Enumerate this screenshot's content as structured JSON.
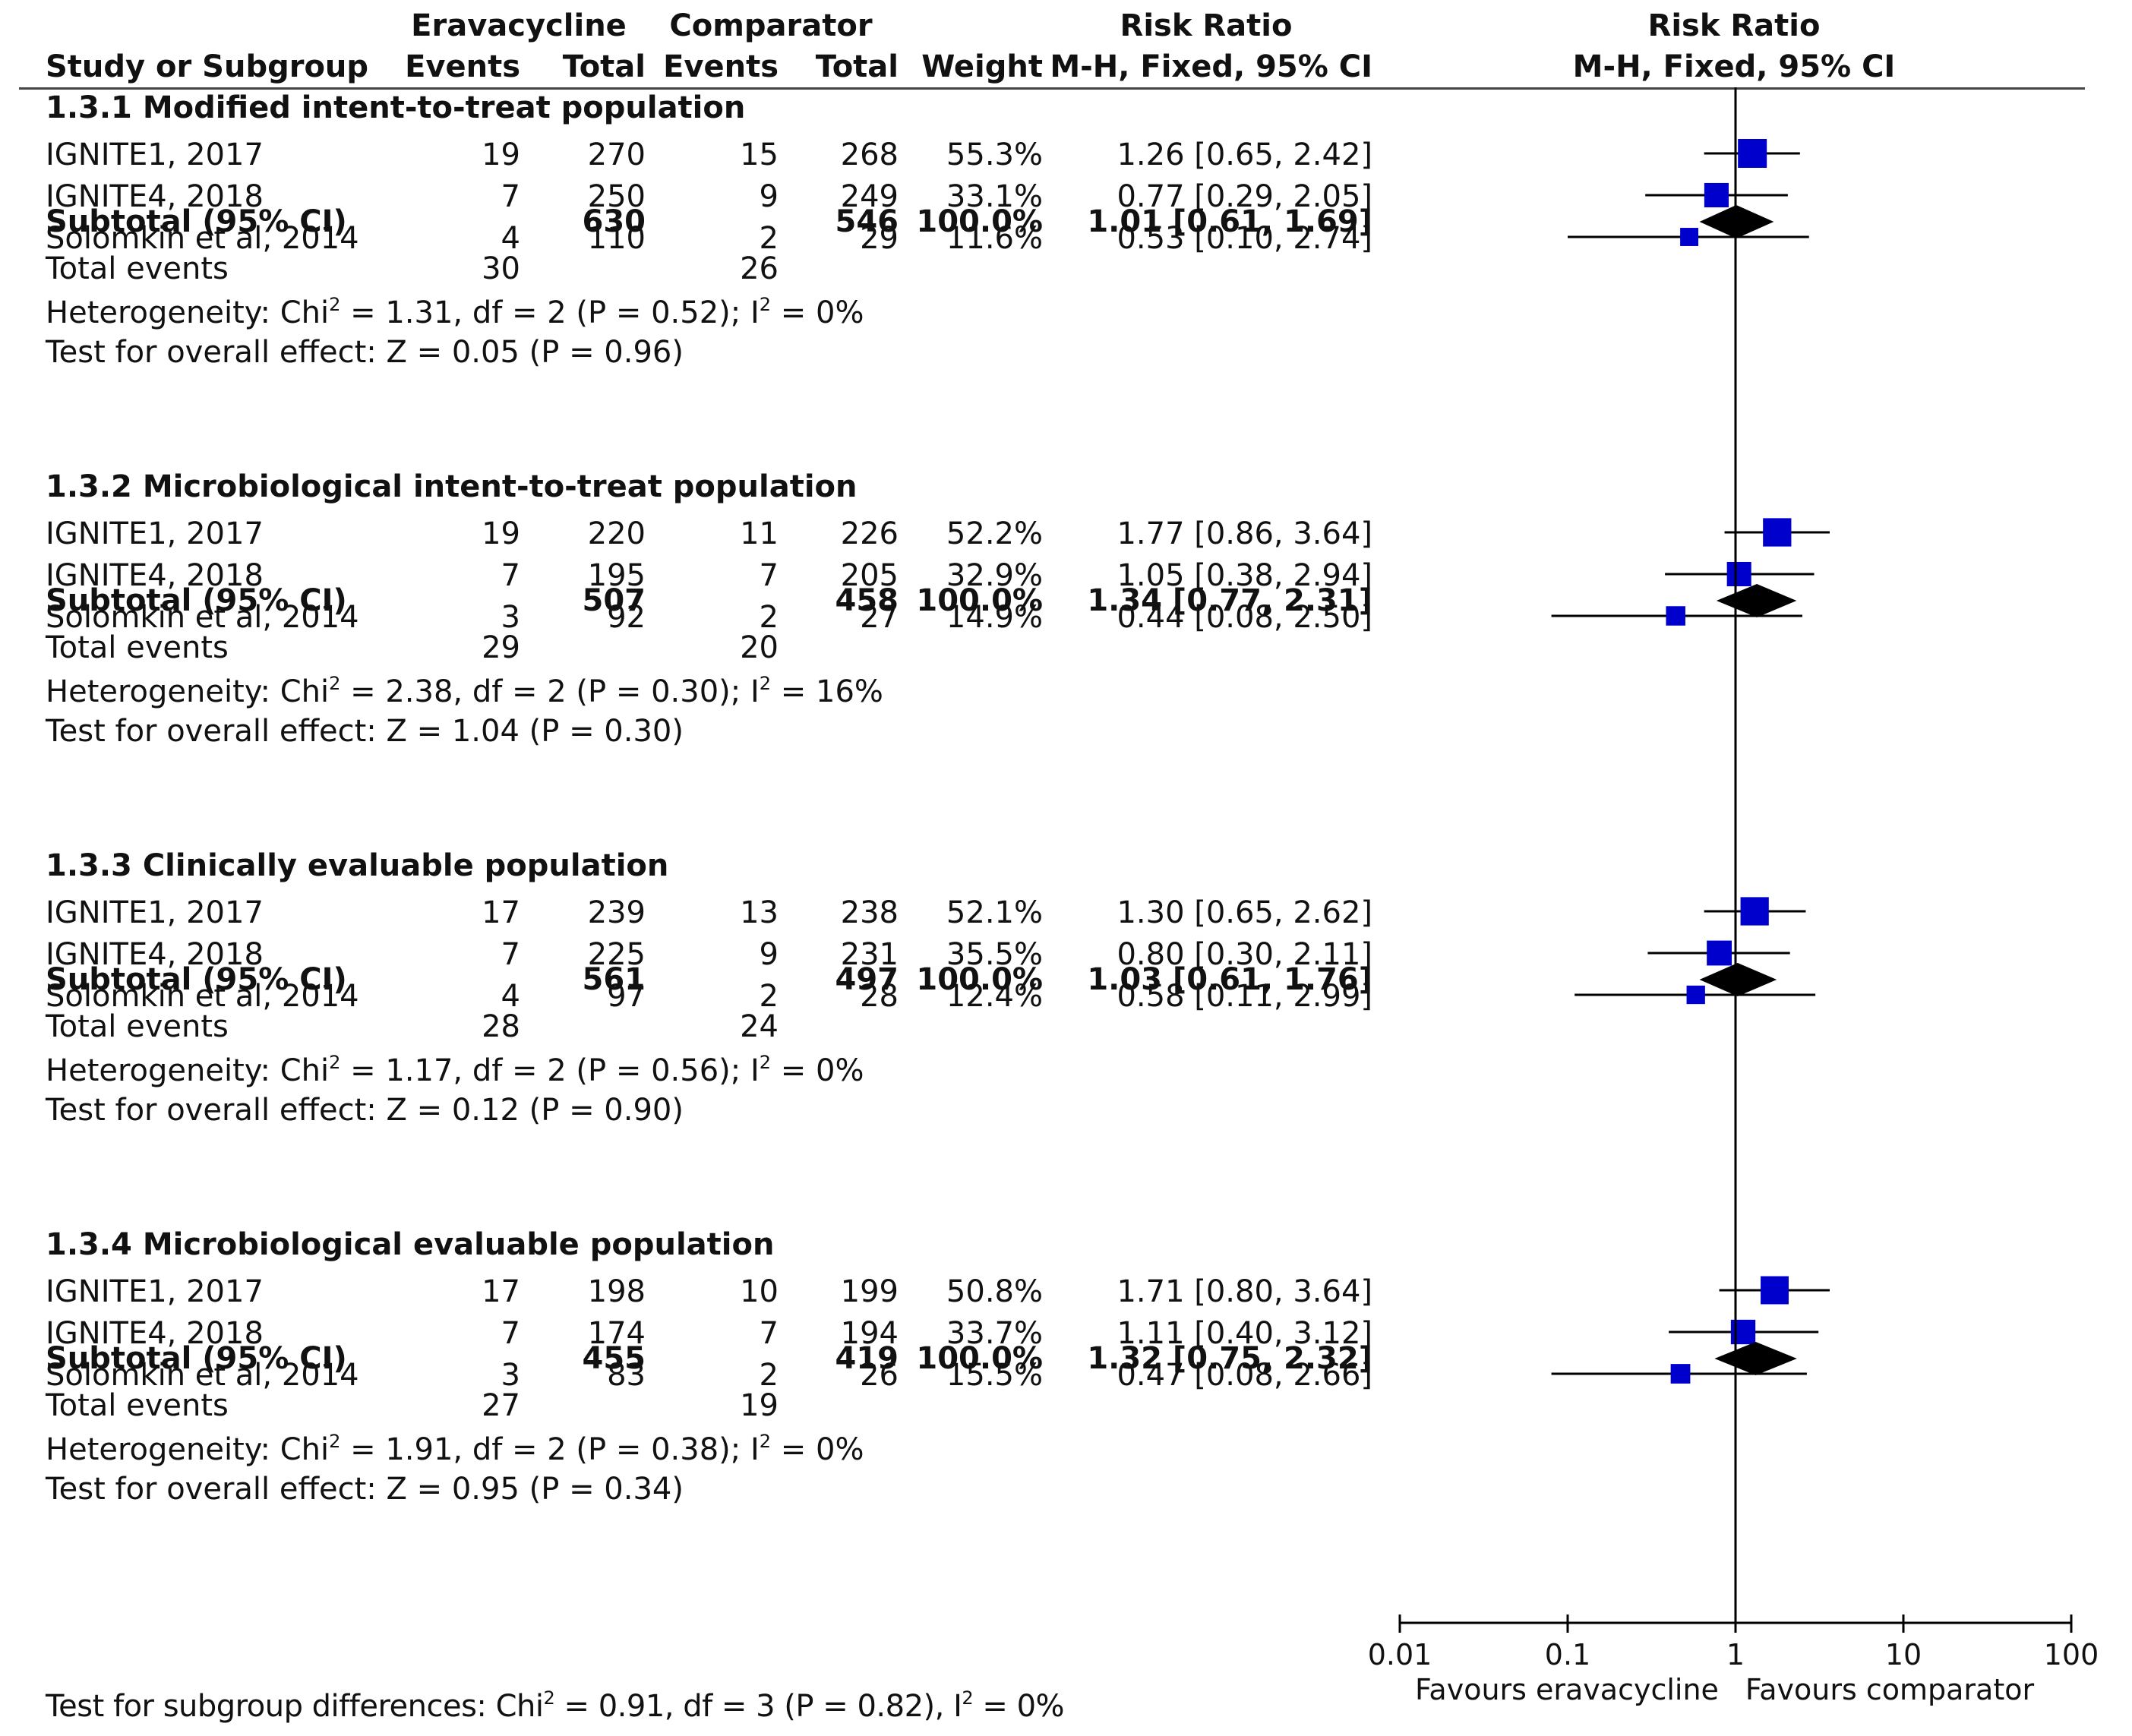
{
  "header": {
    "group1": "Eravacycline",
    "group2": "Comparator",
    "rr_col": "Risk Ratio",
    "plot_col": "Risk Ratio",
    "study_col": "Study or Subgroup",
    "events1": "Events",
    "total1": "Total",
    "events2": "Events",
    "total2": "Total",
    "weight": "Weight",
    "method": "M-H, Fixed, 95% CI",
    "method_plot": "M-H, Fixed, 95% CI"
  },
  "subgroups": [
    {
      "title": "1.3.1 Modified intent-to-treat population",
      "studies": [
        {
          "name": "IGNITE1, 2017",
          "e1": "19",
          "t1": "270",
          "e2": "15",
          "t2": "268",
          "weight": "55.3%",
          "ci": "1.26 [0.65, 2.42]",
          "rr": 1.26,
          "lo": 0.65,
          "hi": 2.42,
          "w": 55.3
        },
        {
          "name": "IGNITE4, 2018",
          "e1": "7",
          "t1": "250",
          "e2": "9",
          "t2": "249",
          "weight": "33.1%",
          "ci": "0.77 [0.29, 2.05]",
          "rr": 0.77,
          "lo": 0.29,
          "hi": 2.05,
          "w": 33.1
        },
        {
          "name": "Solomkin et al, 2014",
          "e1": "4",
          "t1": "110",
          "e2": "2",
          "t2": "29",
          "weight": "11.6%",
          "ci": "0.53 [0.10, 2.74]",
          "rr": 0.53,
          "lo": 0.1,
          "hi": 2.74,
          "w": 11.6
        }
      ],
      "subtotal": {
        "label": "Subtotal (95% CI)",
        "t1": "630",
        "t2": "546",
        "weight": "100.0%",
        "ci": "1.01 [0.61, 1.69]",
        "rr": 1.01,
        "lo": 0.61,
        "hi": 1.69
      },
      "events": {
        "label": "Total events",
        "e1": "30",
        "e2": "26"
      },
      "heterogeneity": {
        "pre": "Heterogeneity: Chi",
        "sup1": "2",
        "mid": " = 1.31, df = 2 (P = 0.52); I",
        "sup2": "2",
        "post": " = 0%"
      },
      "overall": "Test for overall effect: Z = 0.05 (P = 0.96)"
    },
    {
      "title": "1.3.2 Microbiological intent-to-treat population",
      "studies": [
        {
          "name": "IGNITE1, 2017",
          "e1": "19",
          "t1": "220",
          "e2": "11",
          "t2": "226",
          "weight": "52.2%",
          "ci": "1.77 [0.86, 3.64]",
          "rr": 1.77,
          "lo": 0.86,
          "hi": 3.64,
          "w": 52.2
        },
        {
          "name": "IGNITE4, 2018",
          "e1": "7",
          "t1": "195",
          "e2": "7",
          "t2": "205",
          "weight": "32.9%",
          "ci": "1.05 [0.38, 2.94]",
          "rr": 1.05,
          "lo": 0.38,
          "hi": 2.94,
          "w": 32.9
        },
        {
          "name": "Solomkin et al, 2014",
          "e1": "3",
          "t1": "92",
          "e2": "2",
          "t2": "27",
          "weight": "14.9%",
          "ci": "0.44 [0.08, 2.50]",
          "rr": 0.44,
          "lo": 0.08,
          "hi": 2.5,
          "w": 14.9
        }
      ],
      "subtotal": {
        "label": "Subtotal (95% CI)",
        "t1": "507",
        "t2": "458",
        "weight": "100.0%",
        "ci": "1.34 [0.77, 2.31]",
        "rr": 1.34,
        "lo": 0.77,
        "hi": 2.31
      },
      "events": {
        "label": "Total events",
        "e1": "29",
        "e2": "20"
      },
      "heterogeneity": {
        "pre": "Heterogeneity: Chi",
        "sup1": "2",
        "mid": " = 2.38, df = 2 (P = 0.30); I",
        "sup2": "2",
        "post": " = 16%"
      },
      "overall": "Test for overall effect: Z = 1.04 (P = 0.30)"
    },
    {
      "title": "1.3.3 Clinically evaluable population",
      "studies": [
        {
          "name": "IGNITE1, 2017",
          "e1": "17",
          "t1": "239",
          "e2": "13",
          "t2": "238",
          "weight": "52.1%",
          "ci": "1.30 [0.65, 2.62]",
          "rr": 1.3,
          "lo": 0.65,
          "hi": 2.62,
          "w": 52.1
        },
        {
          "name": "IGNITE4, 2018",
          "e1": "7",
          "t1": "225",
          "e2": "9",
          "t2": "231",
          "weight": "35.5%",
          "ci": "0.80 [0.30, 2.11]",
          "rr": 0.8,
          "lo": 0.3,
          "hi": 2.11,
          "w": 35.5
        },
        {
          "name": "Solomkin et al, 2014",
          "e1": "4",
          "t1": "97",
          "e2": "2",
          "t2": "28",
          "weight": "12.4%",
          "ci": "0.58 [0.11, 2.99]",
          "rr": 0.58,
          "lo": 0.11,
          "hi": 2.99,
          "w": 12.4
        }
      ],
      "subtotal": {
        "label": "Subtotal (95% CI)",
        "t1": "561",
        "t2": "497",
        "weight": "100.0%",
        "ci": "1.03 [0.61, 1.76]",
        "rr": 1.03,
        "lo": 0.61,
        "hi": 1.76
      },
      "events": {
        "label": "Total events",
        "e1": "28",
        "e2": "24"
      },
      "heterogeneity": {
        "pre": "Heterogeneity: Chi",
        "sup1": "2",
        "mid": " = 1.17, df = 2 (P = 0.56); I",
        "sup2": "2",
        "post": " = 0%"
      },
      "overall": "Test for overall effect: Z = 0.12 (P = 0.90)"
    },
    {
      "title": "1.3.4 Microbiological evaluable population",
      "studies": [
        {
          "name": "IGNITE1, 2017",
          "e1": "17",
          "t1": "198",
          "e2": "10",
          "t2": "199",
          "weight": "50.8%",
          "ci": "1.71 [0.80, 3.64]",
          "rr": 1.71,
          "lo": 0.8,
          "hi": 3.64,
          "w": 50.8
        },
        {
          "name": "IGNITE4, 2018",
          "e1": "7",
          "t1": "174",
          "e2": "7",
          "t2": "194",
          "weight": "33.7%",
          "ci": "1.11 [0.40, 3.12]",
          "rr": 1.11,
          "lo": 0.4,
          "hi": 3.12,
          "w": 33.7
        },
        {
          "name": "Solomkin et al, 2014",
          "e1": "3",
          "t1": "83",
          "e2": "2",
          "t2": "26",
          "weight": "15.5%",
          "ci": "0.47 [0.08, 2.66]",
          "rr": 0.47,
          "lo": 0.08,
          "hi": 2.66,
          "w": 15.5
        }
      ],
      "subtotal": {
        "label": "Subtotal (95% CI)",
        "t1": "455",
        "t2": "419",
        "weight": "100.0%",
        "ci": "1.32 [0.75, 2.32]",
        "rr": 1.32,
        "lo": 0.75,
        "hi": 2.32
      },
      "events": {
        "label": "Total events",
        "e1": "27",
        "e2": "19"
      },
      "heterogeneity": {
        "pre": "Heterogeneity: Chi",
        "sup1": "2",
        "mid": " = 1.91, df = 2 (P = 0.38); I",
        "sup2": "2",
        "post": " = 0%"
      },
      "overall": "Test for overall effect: Z = 0.95 (P = 0.34)"
    }
  ],
  "footer": {
    "pre": "Test for subgroup differences: Chi",
    "sup1": "2",
    "mid": " = 0.91, df = 3 (P = 0.82), I",
    "sup2": "2",
    "post": " = 0%"
  },
  "chart_data": {
    "type": "forest",
    "scale": "log",
    "xlim": [
      0.01,
      100
    ],
    "ticks": [
      0.01,
      0.1,
      1,
      10,
      100
    ],
    "tick_labels": [
      "0.01",
      "0.1",
      "1",
      "10",
      "100"
    ],
    "favours_left": "Favours eravacycline",
    "favours_right": "Favours comparator",
    "colors": {
      "study_marker": "#0000cc",
      "summary_diamond": "#000000",
      "line": "#000000"
    }
  }
}
